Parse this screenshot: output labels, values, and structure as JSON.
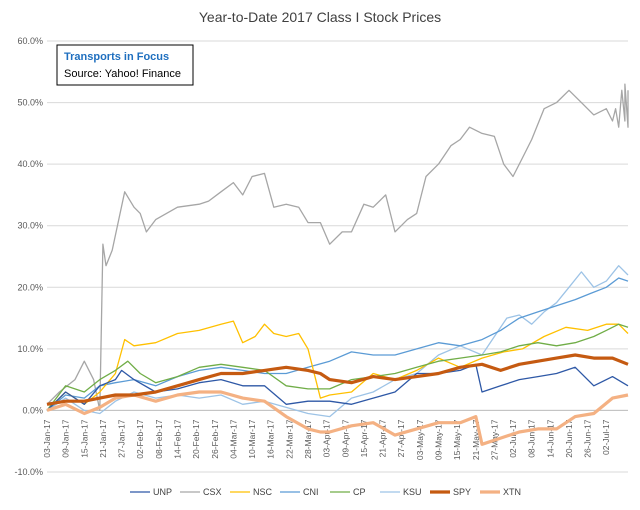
{
  "chart_data": {
    "type": "line",
    "title": "Year-to-Date 2017 Class I Stock Prices",
    "annotation": {
      "title": "Transports in Focus",
      "source": "Source: Yahoo! Finance"
    },
    "ylim": [
      -0.1,
      0.6
    ],
    "ytick_values": [
      -0.1,
      0.0,
      0.1,
      0.2,
      0.3,
      0.4,
      0.5,
      0.6
    ],
    "ytick_labels": [
      "-10.0%",
      "0.0%",
      "10.0%",
      "20.0%",
      "30.0%",
      "40.0%",
      "50.0%",
      "60.0%"
    ],
    "x_tick_labels": [
      "03-Jan-17",
      "09-Jan-17",
      "15-Jan-17",
      "21-Jan-17",
      "27-Jan-17",
      "02-Feb-17",
      "08-Feb-17",
      "14-Feb-17",
      "20-Feb-17",
      "26-Feb-17",
      "04-Mar-17",
      "10-Mar-17",
      "16-Mar-17",
      "22-Mar-17",
      "28-Mar-17",
      "03-Apr-17",
      "09-Apr-17",
      "15-Apr-17",
      "21-Apr-17",
      "27-Apr-17",
      "03-May-17",
      "09-May-17",
      "15-May-17",
      "21-May-17",
      "27-May-17",
      "02-Jun-17",
      "08-Jun-17",
      "14-Jun-17",
      "20-Jun-17",
      "26-Jun-17",
      "02-Jul-17"
    ],
    "x_day_range": [
      0,
      187
    ],
    "grid": true,
    "legend_position": "bottom",
    "series": [
      {
        "name": "UNP",
        "color": "#2e58a6",
        "width": 1.3,
        "points": [
          [
            0,
            0.0
          ],
          [
            6,
            0.03
          ],
          [
            12,
            0.01
          ],
          [
            17,
            0.04
          ],
          [
            22,
            0.05
          ],
          [
            24,
            0.065
          ],
          [
            28,
            0.05
          ],
          [
            35,
            0.03
          ],
          [
            42,
            0.035
          ],
          [
            49,
            0.045
          ],
          [
            56,
            0.05
          ],
          [
            63,
            0.04
          ],
          [
            70,
            0.04
          ],
          [
            77,
            0.01
          ],
          [
            84,
            0.015
          ],
          [
            91,
            0.015
          ],
          [
            98,
            0.01
          ],
          [
            105,
            0.02
          ],
          [
            112,
            0.03
          ],
          [
            119,
            0.06
          ],
          [
            126,
            0.06
          ],
          [
            133,
            0.065
          ],
          [
            138,
            0.075
          ],
          [
            140,
            0.03
          ],
          [
            146,
            0.04
          ],
          [
            152,
            0.05
          ],
          [
            158,
            0.055
          ],
          [
            164,
            0.06
          ],
          [
            170,
            0.07
          ],
          [
            176,
            0.04
          ],
          [
            182,
            0.055
          ],
          [
            187,
            0.04
          ]
        ]
      },
      {
        "name": "CSX",
        "color": "#a6a6a6",
        "width": 1.3,
        "points": [
          [
            0,
            0.01
          ],
          [
            4,
            0.03
          ],
          [
            9,
            0.05
          ],
          [
            12,
            0.08
          ],
          [
            15,
            0.05
          ],
          [
            17,
            0.0
          ],
          [
            18,
            0.27
          ],
          [
            19,
            0.235
          ],
          [
            21,
            0.26
          ],
          [
            25,
            0.355
          ],
          [
            28,
            0.33
          ],
          [
            30,
            0.32
          ],
          [
            32,
            0.29
          ],
          [
            35,
            0.31
          ],
          [
            42,
            0.33
          ],
          [
            49,
            0.335
          ],
          [
            52,
            0.34
          ],
          [
            56,
            0.355
          ],
          [
            60,
            0.37
          ],
          [
            63,
            0.35
          ],
          [
            66,
            0.38
          ],
          [
            70,
            0.385
          ],
          [
            73,
            0.33
          ],
          [
            77,
            0.335
          ],
          [
            81,
            0.33
          ],
          [
            84,
            0.305
          ],
          [
            88,
            0.305
          ],
          [
            91,
            0.27
          ],
          [
            95,
            0.29
          ],
          [
            98,
            0.29
          ],
          [
            102,
            0.335
          ],
          [
            105,
            0.33
          ],
          [
            109,
            0.35
          ],
          [
            112,
            0.29
          ],
          [
            116,
            0.31
          ],
          [
            119,
            0.32
          ],
          [
            122,
            0.38
          ],
          [
            126,
            0.4
          ],
          [
            130,
            0.43
          ],
          [
            133,
            0.44
          ],
          [
            136,
            0.46
          ],
          [
            140,
            0.45
          ],
          [
            144,
            0.445
          ],
          [
            147,
            0.4
          ],
          [
            150,
            0.38
          ],
          [
            153,
            0.41
          ],
          [
            156,
            0.44
          ],
          [
            160,
            0.49
          ],
          [
            164,
            0.5
          ],
          [
            168,
            0.52
          ],
          [
            172,
            0.5
          ],
          [
            176,
            0.48
          ],
          [
            180,
            0.49
          ],
          [
            182,
            0.47
          ],
          [
            184,
            0.46
          ],
          [
            186,
            0.47
          ],
          [
            187,
            0.46
          ],
          [
            183,
            0.49
          ],
          [
            185,
            0.52
          ],
          [
            186,
            0.53
          ],
          [
            187,
            0.52
          ]
        ]
      },
      {
        "name": "NSC",
        "color": "#ffc000",
        "width": 1.3,
        "points": [
          [
            0,
            0.0
          ],
          [
            6,
            0.03
          ],
          [
            12,
            0.01
          ],
          [
            17,
            0.03
          ],
          [
            22,
            0.06
          ],
          [
            25,
            0.115
          ],
          [
            28,
            0.105
          ],
          [
            35,
            0.11
          ],
          [
            42,
            0.125
          ],
          [
            49,
            0.13
          ],
          [
            56,
            0.14
          ],
          [
            60,
            0.145
          ],
          [
            63,
            0.11
          ],
          [
            67,
            0.12
          ],
          [
            70,
            0.14
          ],
          [
            73,
            0.125
          ],
          [
            77,
            0.12
          ],
          [
            81,
            0.125
          ],
          [
            84,
            0.1
          ],
          [
            88,
            0.02
          ],
          [
            91,
            0.025
          ],
          [
            98,
            0.03
          ],
          [
            105,
            0.06
          ],
          [
            112,
            0.05
          ],
          [
            119,
            0.065
          ],
          [
            126,
            0.085
          ],
          [
            133,
            0.07
          ],
          [
            140,
            0.085
          ],
          [
            147,
            0.095
          ],
          [
            153,
            0.1
          ],
          [
            160,
            0.12
          ],
          [
            167,
            0.135
          ],
          [
            174,
            0.13
          ],
          [
            180,
            0.14
          ],
          [
            184,
            0.14
          ],
          [
            187,
            0.125
          ]
        ]
      },
      {
        "name": "CNI",
        "color": "#5b9bd5",
        "width": 1.3,
        "points": [
          [
            0,
            0.0
          ],
          [
            6,
            0.025
          ],
          [
            12,
            0.02
          ],
          [
            17,
            0.04
          ],
          [
            22,
            0.045
          ],
          [
            28,
            0.05
          ],
          [
            35,
            0.04
          ],
          [
            42,
            0.055
          ],
          [
            49,
            0.065
          ],
          [
            56,
            0.07
          ],
          [
            63,
            0.065
          ],
          [
            70,
            0.06
          ],
          [
            77,
            0.06
          ],
          [
            84,
            0.07
          ],
          [
            91,
            0.08
          ],
          [
            98,
            0.095
          ],
          [
            105,
            0.09
          ],
          [
            112,
            0.09
          ],
          [
            119,
            0.1
          ],
          [
            126,
            0.11
          ],
          [
            133,
            0.105
          ],
          [
            140,
            0.115
          ],
          [
            146,
            0.13
          ],
          [
            152,
            0.15
          ],
          [
            158,
            0.16
          ],
          [
            164,
            0.17
          ],
          [
            170,
            0.18
          ],
          [
            175,
            0.19
          ],
          [
            180,
            0.2
          ],
          [
            184,
            0.215
          ],
          [
            187,
            0.21
          ]
        ]
      },
      {
        "name": "CP",
        "color": "#70ad47",
        "width": 1.3,
        "points": [
          [
            0,
            0.0
          ],
          [
            6,
            0.04
          ],
          [
            12,
            0.03
          ],
          [
            17,
            0.05
          ],
          [
            22,
            0.065
          ],
          [
            26,
            0.08
          ],
          [
            30,
            0.06
          ],
          [
            35,
            0.045
          ],
          [
            42,
            0.055
          ],
          [
            49,
            0.07
          ],
          [
            56,
            0.075
          ],
          [
            63,
            0.07
          ],
          [
            70,
            0.065
          ],
          [
            77,
            0.04
          ],
          [
            84,
            0.035
          ],
          [
            91,
            0.035
          ],
          [
            98,
            0.05
          ],
          [
            105,
            0.055
          ],
          [
            112,
            0.06
          ],
          [
            119,
            0.07
          ],
          [
            126,
            0.08
          ],
          [
            133,
            0.085
          ],
          [
            140,
            0.09
          ],
          [
            146,
            0.095
          ],
          [
            152,
            0.105
          ],
          [
            158,
            0.11
          ],
          [
            164,
            0.105
          ],
          [
            170,
            0.11
          ],
          [
            176,
            0.12
          ],
          [
            180,
            0.13
          ],
          [
            184,
            0.14
          ],
          [
            187,
            0.135
          ]
        ]
      },
      {
        "name": "KSU",
        "color": "#9dc3e6",
        "width": 1.3,
        "points": [
          [
            0,
            0.0
          ],
          [
            6,
            0.02
          ],
          [
            12,
            0.0
          ],
          [
            17,
            -0.005
          ],
          [
            22,
            0.015
          ],
          [
            28,
            0.03
          ],
          [
            35,
            0.02
          ],
          [
            42,
            0.025
          ],
          [
            49,
            0.02
          ],
          [
            56,
            0.025
          ],
          [
            63,
            0.01
          ],
          [
            70,
            0.015
          ],
          [
            77,
            0.005
          ],
          [
            84,
            -0.005
          ],
          [
            91,
            -0.01
          ],
          [
            98,
            0.02
          ],
          [
            105,
            0.03
          ],
          [
            112,
            0.05
          ],
          [
            119,
            0.06
          ],
          [
            126,
            0.09
          ],
          [
            133,
            0.105
          ],
          [
            140,
            0.09
          ],
          [
            144,
            0.12
          ],
          [
            148,
            0.15
          ],
          [
            152,
            0.155
          ],
          [
            156,
            0.14
          ],
          [
            160,
            0.16
          ],
          [
            164,
            0.175
          ],
          [
            168,
            0.2
          ],
          [
            172,
            0.225
          ],
          [
            176,
            0.2
          ],
          [
            180,
            0.21
          ],
          [
            184,
            0.235
          ],
          [
            187,
            0.22
          ]
        ]
      },
      {
        "name": "SPY",
        "color": "#c55a11",
        "width": 3.2,
        "points": [
          [
            0,
            0.01
          ],
          [
            6,
            0.015
          ],
          [
            12,
            0.015
          ],
          [
            17,
            0.02
          ],
          [
            22,
            0.025
          ],
          [
            28,
            0.025
          ],
          [
            35,
            0.03
          ],
          [
            42,
            0.04
          ],
          [
            49,
            0.05
          ],
          [
            56,
            0.06
          ],
          [
            63,
            0.06
          ],
          [
            70,
            0.065
          ],
          [
            77,
            0.07
          ],
          [
            84,
            0.065
          ],
          [
            88,
            0.06
          ],
          [
            91,
            0.05
          ],
          [
            98,
            0.045
          ],
          [
            105,
            0.055
          ],
          [
            112,
            0.05
          ],
          [
            119,
            0.055
          ],
          [
            126,
            0.06
          ],
          [
            133,
            0.07
          ],
          [
            140,
            0.075
          ],
          [
            146,
            0.065
          ],
          [
            152,
            0.075
          ],
          [
            158,
            0.08
          ],
          [
            164,
            0.085
          ],
          [
            170,
            0.09
          ],
          [
            176,
            0.085
          ],
          [
            182,
            0.085
          ],
          [
            187,
            0.075
          ]
        ]
      },
      {
        "name": "XTN",
        "color": "#f4b183",
        "width": 3.2,
        "points": [
          [
            0,
            0.0
          ],
          [
            6,
            0.01
          ],
          [
            12,
            -0.005
          ],
          [
            17,
            0.005
          ],
          [
            22,
            0.02
          ],
          [
            28,
            0.025
          ],
          [
            35,
            0.015
          ],
          [
            42,
            0.025
          ],
          [
            49,
            0.03
          ],
          [
            56,
            0.03
          ],
          [
            63,
            0.02
          ],
          [
            70,
            0.015
          ],
          [
            77,
            -0.01
          ],
          [
            84,
            -0.03
          ],
          [
            88,
            -0.035
          ],
          [
            91,
            -0.035
          ],
          [
            98,
            -0.025
          ],
          [
            105,
            -0.02
          ],
          [
            112,
            -0.04
          ],
          [
            119,
            -0.03
          ],
          [
            126,
            -0.02
          ],
          [
            133,
            -0.02
          ],
          [
            138,
            -0.01
          ],
          [
            140,
            -0.055
          ],
          [
            146,
            -0.045
          ],
          [
            152,
            -0.035
          ],
          [
            158,
            -0.03
          ],
          [
            164,
            -0.03
          ],
          [
            170,
            -0.01
          ],
          [
            176,
            -0.005
          ],
          [
            182,
            0.02
          ],
          [
            187,
            0.025
          ]
        ]
      }
    ]
  }
}
